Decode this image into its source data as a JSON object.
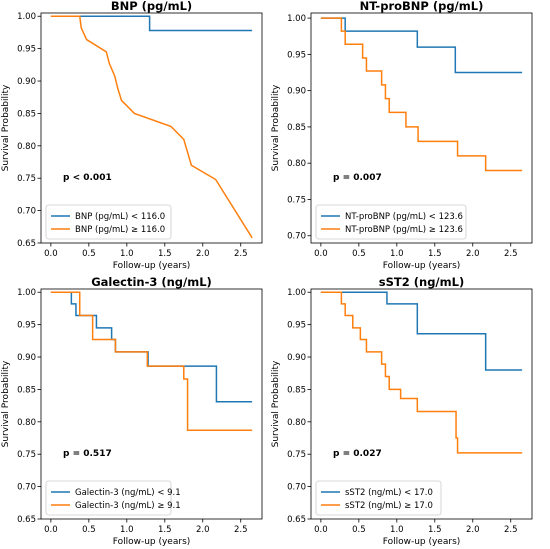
{
  "chart_data": [
    {
      "type": "line",
      "step": true,
      "title": "BNP (pg/mL)",
      "xlabel": "Follow-up (years)",
      "ylabel": "Survival Probability",
      "xticks": [
        "0.0",
        "0.5",
        "1.0",
        "1.5",
        "2.0",
        "2.5"
      ],
      "yticks": [
        "0.65",
        "0.70",
        "0.75",
        "0.80",
        "0.85",
        "0.90",
        "0.95",
        "1.00"
      ],
      "xlim": [
        -0.13,
        2.78
      ],
      "ylim": [
        0.65,
        1.005
      ],
      "annotation": "p < 0.001",
      "legend_position": "lower-left",
      "series": [
        {
          "name": "BNP (pg/mL) < 116.0",
          "color": "#1f77b4",
          "x": [
            0,
            1.3,
            1.3,
            2.65
          ],
          "y": [
            1.0,
            1.0,
            0.978,
            0.978
          ]
        },
        {
          "name": "BNP (pg/mL) ≥ 116.0",
          "color": "#ff7f0e",
          "x": [
            0,
            0.38,
            0.4,
            0.4,
            0.47,
            0.47,
            0.73,
            0.73,
            0.77,
            0.77,
            0.84,
            0.84,
            0.88,
            0.88,
            0.93,
            0.93,
            1.1,
            1.1,
            1.58,
            1.58,
            1.75,
            1.75,
            1.8,
            1.8,
            1.85,
            1.85,
            2.17,
            2.17,
            2.65
          ],
          "y": [
            1.0,
            1.0,
            0.982,
            0.982,
            0.964,
            0.964,
            0.945,
            0.945,
            0.927,
            0.927,
            0.908,
            0.908,
            0.889,
            0.889,
            0.87,
            0.87,
            0.85,
            0.85,
            0.83,
            0.83,
            0.81,
            0.81,
            0.79,
            0.79,
            0.77,
            0.77,
            0.748,
            0.748,
            0.658
          ]
        }
      ]
    },
    {
      "type": "line",
      "step": true,
      "title": "NT-proBNP (pg/mL)",
      "xlabel": "Follow-up (years)",
      "ylabel": "Survival Probability",
      "xticks": [
        "0.0",
        "0.5",
        "1.0",
        "1.5",
        "2.0",
        "2.5"
      ],
      "yticks": [
        "0.70",
        "0.75",
        "0.80",
        "0.85",
        "0.90",
        "0.95",
        "1.00"
      ],
      "xlim": [
        -0.13,
        2.78
      ],
      "ylim": [
        0.69,
        1.007
      ],
      "annotation": "p = 0.007",
      "legend_position": "lower-left",
      "series": [
        {
          "name": "NT-proBNP (pg/mL) < 123.6",
          "color": "#1f77b4",
          "x": [
            0,
            0.32,
            0.32,
            1.27,
            1.27,
            1.77,
            1.77,
            2.65
          ],
          "y": [
            1.0,
            1.0,
            0.982,
            0.982,
            0.96,
            0.96,
            0.925,
            0.925
          ]
        },
        {
          "name": "NT-proBNP (pg/mL) ≥ 123.6",
          "color": "#ff7f0e",
          "x": [
            0,
            0.27,
            0.27,
            0.32,
            0.32,
            0.55,
            0.55,
            0.6,
            0.6,
            0.8,
            0.8,
            0.85,
            0.85,
            0.9,
            0.9,
            1.12,
            1.12,
            1.28,
            1.28,
            1.8,
            1.8,
            2.17,
            2.17,
            2.65
          ],
          "y": [
            1.0,
            1.0,
            0.982,
            0.982,
            0.964,
            0.964,
            0.945,
            0.945,
            0.927,
            0.927,
            0.908,
            0.908,
            0.889,
            0.889,
            0.87,
            0.87,
            0.85,
            0.85,
            0.83,
            0.83,
            0.81,
            0.81,
            0.79,
            0.79
          ]
        }
      ]
    },
    {
      "type": "line",
      "step": true,
      "title": "Galectin-3 (ng/mL)",
      "xlabel": "Follow-up (years)",
      "ylabel": "Survival Probability",
      "xticks": [
        "0.0",
        "0.5",
        "1.0",
        "1.5",
        "2.0",
        "2.5"
      ],
      "yticks": [
        "0.65",
        "0.70",
        "0.75",
        "0.80",
        "0.85",
        "0.90",
        "0.95",
        "1.00"
      ],
      "xlim": [
        -0.13,
        2.78
      ],
      "ylim": [
        0.65,
        1.005
      ],
      "annotation": "p = 0.517",
      "legend_position": "lower-left",
      "series": [
        {
          "name": "Galectin-3 (ng/mL) < 9.1",
          "color": "#1f77b4",
          "x": [
            0,
            0.27,
            0.27,
            0.33,
            0.33,
            0.6,
            0.6,
            0.8,
            0.8,
            0.85,
            0.85,
            1.28,
            1.28,
            2.18,
            2.18,
            2.65
          ],
          "y": [
            1.0,
            1.0,
            0.982,
            0.982,
            0.964,
            0.964,
            0.945,
            0.945,
            0.927,
            0.927,
            0.908,
            0.908,
            0.886,
            0.886,
            0.831,
            0.831
          ]
        },
        {
          "name": "Galectin-3 (ng/mL) ≥ 9.1",
          "color": "#ff7f0e",
          "x": [
            0,
            0.38,
            0.38,
            0.55,
            0.55,
            0.85,
            0.85,
            1.27,
            1.27,
            1.75,
            1.75,
            1.8,
            1.8,
            2.65
          ],
          "y": [
            1.0,
            1.0,
            0.964,
            0.964,
            0.927,
            0.927,
            0.908,
            0.908,
            0.886,
            0.886,
            0.866,
            0.866,
            0.787,
            0.787
          ]
        }
      ]
    },
    {
      "type": "line",
      "step": true,
      "title": "sST2 (ng/mL)",
      "xlabel": "Follow-up (years)",
      "ylabel": "Survival Probability",
      "xticks": [
        "0.0",
        "0.5",
        "1.0",
        "1.5",
        "2.0",
        "2.5"
      ],
      "yticks": [
        "0.65",
        "0.70",
        "0.75",
        "0.80",
        "0.85",
        "0.90",
        "0.95",
        "1.00"
      ],
      "xlim": [
        -0.13,
        2.78
      ],
      "ylim": [
        0.65,
        1.005
      ],
      "annotation": "p = 0.027",
      "legend_position": "lower-left",
      "series": [
        {
          "name": "sST2 (ng/mL) < 17.0",
          "color": "#1f77b4",
          "x": [
            0,
            0.87,
            0.87,
            1.27,
            1.27,
            2.17,
            2.17,
            2.65
          ],
          "y": [
            1.0,
            1.0,
            0.982,
            0.982,
            0.936,
            0.936,
            0.88,
            0.88
          ]
        },
        {
          "name": "sST2 (ng/mL) ≥ 17.0",
          "color": "#ff7f0e",
          "x": [
            0,
            0.27,
            0.27,
            0.32,
            0.32,
            0.42,
            0.42,
            0.52,
            0.52,
            0.6,
            0.6,
            0.8,
            0.8,
            0.85,
            0.85,
            0.9,
            0.9,
            1.05,
            1.05,
            1.27,
            1.27,
            1.78,
            1.78,
            1.8,
            1.8,
            2.65
          ],
          "y": [
            1.0,
            1.0,
            0.982,
            0.982,
            0.964,
            0.964,
            0.945,
            0.945,
            0.927,
            0.927,
            0.908,
            0.908,
            0.889,
            0.889,
            0.87,
            0.87,
            0.85,
            0.85,
            0.836,
            0.836,
            0.816,
            0.816,
            0.775,
            0.775,
            0.752,
            0.752
          ]
        }
      ]
    }
  ]
}
